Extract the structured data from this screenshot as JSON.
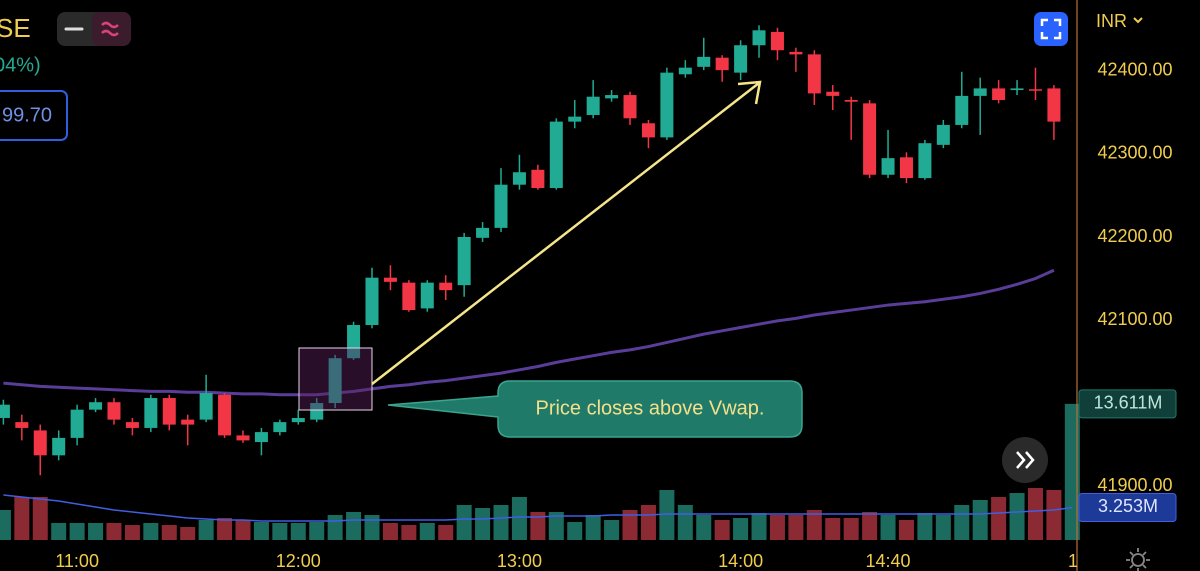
{
  "header": {
    "symbol_fragment": "SE",
    "change_fragment": "04%)",
    "price_box": "99.70",
    "currency": "INR"
  },
  "chart_data": {
    "type": "candlestick",
    "categories": [
      null,
      null,
      null,
      null,
      "11:00",
      null,
      null,
      null,
      null,
      null,
      null,
      null,
      null,
      null,
      null,
      null,
      "12:00",
      null,
      null,
      null,
      null,
      null,
      null,
      null,
      null,
      null,
      null,
      null,
      "13:00",
      null,
      null,
      null,
      null,
      null,
      null,
      null,
      null,
      null,
      null,
      null,
      "14:00",
      null,
      null,
      null,
      null,
      null,
      null,
      null,
      "14:40",
      null,
      null,
      null,
      null,
      null,
      null,
      null,
      null,
      null
    ],
    "x_edge_label": "1",
    "open": [
      41982,
      41977,
      41967,
      41937,
      41958,
      41992,
      42001,
      41977,
      41970,
      42006,
      41980,
      41980,
      42010,
      41961,
      41953,
      41965,
      41977,
      41980,
      42000,
      42054,
      42094,
      42151,
      42145,
      42114,
      42145,
      42142,
      42199,
      42211,
      42263,
      42281,
      42259,
      42339,
      42347,
      42367,
      42371,
      42337,
      42320,
      42396,
      42405,
      42416,
      42398,
      42431,
      42447,
      42423,
      42420,
      42375,
      42365,
      42361,
      42275,
      42296,
      42271,
      42311,
      42335,
      42370,
      42379,
      42377,
      42378,
      42379
    ],
    "high": [
      42004,
      41986,
      41974,
      41967,
      41998,
      42006,
      42006,
      41982,
      42010,
      42010,
      41986,
      42034,
      42012,
      41967,
      41970,
      41980,
      41992,
      42006,
      42058,
      42098,
      42163,
      42166,
      42148,
      42148,
      42154,
      42205,
      42218,
      42283,
      42299,
      42287,
      42343,
      42365,
      42389,
      42377,
      42375,
      42341,
      42404,
      42413,
      42440,
      42419,
      42437,
      42455,
      42452,
      42428,
      42425,
      42383,
      42369,
      42365,
      42329,
      42302,
      42317,
      42341,
      42399,
      42392,
      42389,
      42389,
      42404,
      42383
    ],
    "low": [
      41974,
      41955,
      41913,
      41931,
      41949,
      41989,
      41974,
      41961,
      41965,
      41967,
      41949,
      41977,
      41958,
      41952,
      41937,
      41961,
      41974,
      41977,
      41994,
      42052,
      42090,
      42136,
      42110,
      42110,
      42124,
      42128,
      42194,
      42206,
      42257,
      42257,
      42257,
      42331,
      42343,
      42363,
      42335,
      42307,
      42317,
      42392,
      42401,
      42387,
      42389,
      42416,
      42413,
      42399,
      42359,
      42353,
      42317,
      42271,
      42271,
      42265,
      42269,
      42307,
      42331,
      42323,
      42361,
      42371,
      42365,
      42317
    ],
    "close": [
      41998,
      41970,
      41937,
      41958,
      41992,
      42001,
      41980,
      41970,
      42006,
      41974,
      41974,
      42012,
      41961,
      41955,
      41965,
      41977,
      41982,
      42000,
      42054,
      42094,
      42151,
      42146,
      42112,
      42145,
      42136,
      42200,
      42211,
      42263,
      42278,
      42259,
      42339,
      42345,
      42369,
      42371,
      42343,
      42320,
      42398,
      42404,
      42417,
      42401,
      42431,
      42449,
      42425,
      42420,
      42373,
      42370,
      42363,
      42275,
      42295,
      42271,
      42313,
      42335,
      42370,
      42379,
      42365,
      42379,
      42377,
      42339
    ],
    "up_color": "#22ab94",
    "down_color": "#f23645",
    "ylim": [
      41835,
      42485.5
    ],
    "yticks": [
      {
        "value": 41900,
        "label": "41900.00"
      },
      {
        "value": 42100,
        "label": "42100.00"
      },
      {
        "value": 42200,
        "label": "42200.00"
      },
      {
        "value": 42300,
        "label": "42300.00"
      },
      {
        "value": 42400,
        "label": "42400.00"
      }
    ],
    "grid": false,
    "vwap": {
      "color": "#5a3d99",
      "values": [
        42024,
        42022,
        42020,
        42019,
        42018,
        42017,
        42016,
        42015,
        42014,
        42014,
        42013,
        42013,
        42012,
        42011,
        42011,
        42010,
        42010,
        42010,
        42012,
        42014,
        42017,
        42020,
        42022,
        42025,
        42027,
        42030,
        42033,
        42036,
        42040,
        42044,
        42049,
        42053,
        42057,
        42061,
        42064,
        42068,
        42073,
        42078,
        42083,
        42087,
        42091,
        42095,
        42099,
        42102,
        42106,
        42109,
        42112,
        42115,
        42118,
        42120,
        42122,
        42125,
        42128,
        42132,
        42137,
        42143,
        42150,
        42160
      ]
    },
    "volume": {
      "vlim": [
        0,
        54
      ],
      "up_color": "#1c6b5f",
      "down_color": "#8c2a33",
      "values": [
        3.0,
        4.3,
        4.3,
        1.7,
        1.7,
        1.7,
        1.7,
        1.5,
        1.7,
        1.5,
        1.3,
        2.0,
        2.2,
        2.0,
        1.8,
        1.7,
        1.7,
        1.8,
        2.5,
        2.8,
        2.5,
        1.7,
        1.5,
        1.7,
        1.5,
        3.5,
        3.2,
        3.5,
        4.3,
        2.8,
        2.8,
        1.8,
        2.5,
        2.0,
        3.0,
        3.5,
        5.0,
        3.5,
        2.5,
        2.0,
        2.2,
        2.7,
        2.5,
        2.5,
        3.0,
        2.2,
        2.2,
        2.8,
        2.5,
        2.0,
        2.7,
        2.5,
        3.5,
        4.0,
        4.3,
        4.7,
        5.2,
        5.0
      ],
      "last_volume": {
        "value": 13.611,
        "label": "13.611M"
      },
      "ma_color": "#3f5fe0",
      "ma_values": [
        4.5,
        4.3,
        4.1,
        3.9,
        3.6,
        3.3,
        3.0,
        2.8,
        2.6,
        2.4,
        2.2,
        2.1,
        2.0,
        2.0,
        1.9,
        1.9,
        1.9,
        1.9,
        1.9,
        2.0,
        2.0,
        2.0,
        2.0,
        2.0,
        2.0,
        2.1,
        2.1,
        2.2,
        2.3,
        2.3,
        2.4,
        2.4,
        2.4,
        2.5,
        2.5,
        2.5,
        2.6,
        2.6,
        2.6,
        2.6,
        2.6,
        2.6,
        2.6,
        2.6,
        2.6,
        2.6,
        2.6,
        2.6,
        2.6,
        2.6,
        2.6,
        2.6,
        2.6,
        2.6,
        2.7,
        2.8,
        2.9,
        3.0
      ],
      "last_ma": {
        "value": 3.253,
        "label": "3.253M"
      }
    },
    "annotation": "Price closes above Vwap."
  }
}
